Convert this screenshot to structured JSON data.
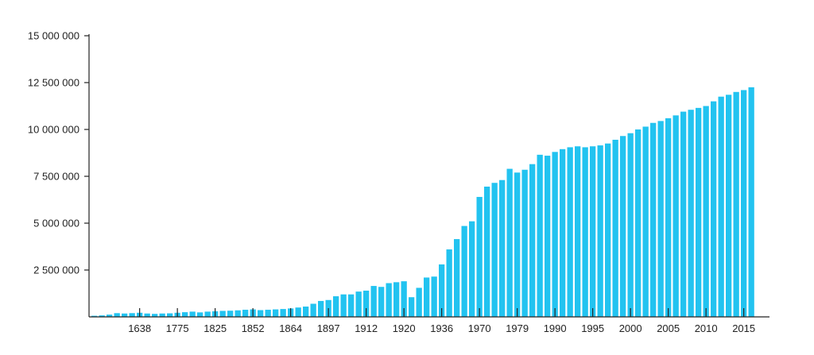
{
  "chart_data": {
    "type": "bar",
    "title": "",
    "xlabel": "",
    "ylabel": "",
    "ylim": [
      0,
      15000000
    ],
    "grid": false,
    "legend": "none",
    "bar_color": "#22c3f0",
    "axis_color": "#222222",
    "y_ticks": [
      {
        "value": 2500000,
        "label": "2 500 000"
      },
      {
        "value": 5000000,
        "label": "5 000 000"
      },
      {
        "value": 7500000,
        "label": "7 500 000"
      },
      {
        "value": 10000000,
        "label": "10 000 000"
      },
      {
        "value": 12500000,
        "label": "12 500 000"
      },
      {
        "value": 15000000,
        "label": "15 000 000"
      }
    ],
    "x_tick_labels": [
      {
        "index": 6,
        "label": "1638"
      },
      {
        "index": 11,
        "label": "1775"
      },
      {
        "index": 16,
        "label": "1825"
      },
      {
        "index": 21,
        "label": "1852"
      },
      {
        "index": 26,
        "label": "1864"
      },
      {
        "index": 31,
        "label": "1897"
      },
      {
        "index": 36,
        "label": "1912"
      },
      {
        "index": 41,
        "label": "1920"
      },
      {
        "index": 46,
        "label": "1936"
      },
      {
        "index": 51,
        "label": "1970"
      },
      {
        "index": 56,
        "label": "1979"
      },
      {
        "index": 61,
        "label": "1990"
      },
      {
        "index": 66,
        "label": "1995"
      },
      {
        "index": 71,
        "label": "2000"
      },
      {
        "index": 76,
        "label": "2005"
      },
      {
        "index": 81,
        "label": "2010"
      },
      {
        "index": 86,
        "label": "2015"
      }
    ],
    "values": [
      60000,
      80000,
      120000,
      200000,
      180000,
      200000,
      220000,
      180000,
      160000,
      180000,
      190000,
      220000,
      250000,
      280000,
      240000,
      280000,
      300000,
      320000,
      330000,
      350000,
      380000,
      400000,
      360000,
      380000,
      400000,
      420000,
      450000,
      500000,
      550000,
      700000,
      850000,
      900000,
      1100000,
      1200000,
      1200000,
      1350000,
      1400000,
      1650000,
      1600000,
      1800000,
      1850000,
      1900000,
      1050000,
      1550000,
      2100000,
      2150000,
      2800000,
      3600000,
      4150000,
      4850000,
      5100000,
      6400000,
      6950000,
      7150000,
      7300000,
      7900000,
      7700000,
      7850000,
      8150000,
      8650000,
      8600000,
      8800000,
      8950000,
      9050000,
      9100000,
      9050000,
      9100000,
      9150000,
      9250000,
      9450000,
      9650000,
      9800000,
      10000000,
      10150000,
      10350000,
      10450000,
      10600000,
      10750000,
      10950000,
      11050000,
      11150000,
      11250000,
      11500000,
      11750000,
      11850000,
      12000000,
      12100000,
      12250000
    ]
  }
}
